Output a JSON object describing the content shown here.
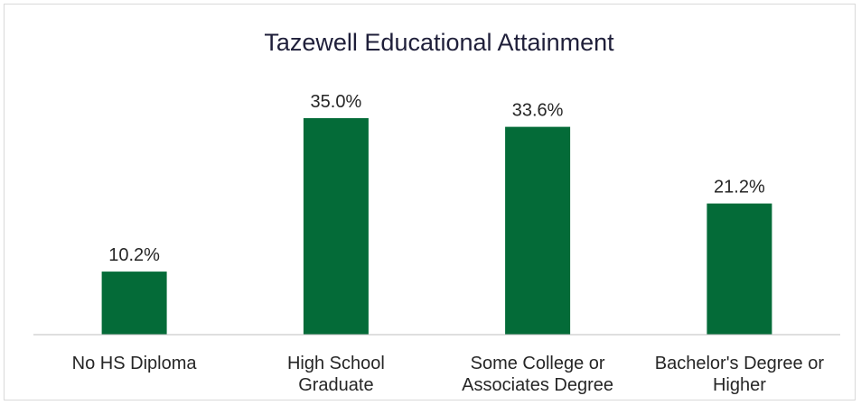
{
  "chart_data": {
    "type": "bar",
    "title": "Tazewell Educational Attainment",
    "categories": [
      [
        "No HS Diploma"
      ],
      [
        "High School",
        "Graduate"
      ],
      [
        "Some College or",
        "Associates Degree"
      ],
      [
        "Bachelor's Degree or",
        "Higher"
      ]
    ],
    "values": [
      10.2,
      35.0,
      33.6,
      21.2
    ],
    "data_labels": [
      "10.2%",
      "35.0%",
      "33.6%",
      "21.2%"
    ],
    "unit": "%",
    "ylim": [
      0,
      40
    ],
    "grid": false,
    "legend": "none",
    "bar_color": "#046b38",
    "axis_color": "#bfbfbf"
  }
}
